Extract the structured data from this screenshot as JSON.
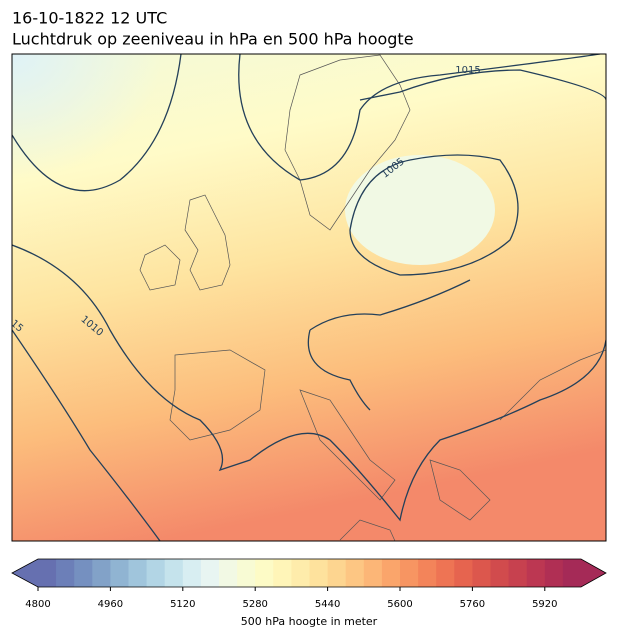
{
  "title": "16-10-1822 12 UTC",
  "subtitle": "Luchtdruk op zeeniveau in hPa en 500 hPa hoogte",
  "contour_labels": [
    "1015",
    "1005",
    "1010",
    "15"
  ],
  "colorbar": {
    "label": "500 hPa hoogte in meter",
    "lim": [
      4800,
      6000
    ],
    "ticks": [
      4800,
      4960,
      5120,
      5280,
      5440,
      5600,
      5760,
      5920
    ],
    "colors": [
      "#6670b0",
      "#6c7fb8",
      "#7590c0",
      "#82a2c8",
      "#90b4d2",
      "#a0c5dc",
      "#b2d5e5",
      "#c5e3ec",
      "#d8eef2",
      "#e8f5f2",
      "#f2f9e4",
      "#f8fbd4",
      "#fdfbc6",
      "#fff5b8",
      "#feecab",
      "#fee29d",
      "#fdd590",
      "#fdc683",
      "#fcb677",
      "#faa56b",
      "#f79562",
      "#f3845a",
      "#ee7454",
      "#e6644f",
      "#dc574d",
      "#d14b4d",
      "#c7414f",
      "#bc3752",
      "#b02f54",
      "#a52a57"
    ]
  }
}
